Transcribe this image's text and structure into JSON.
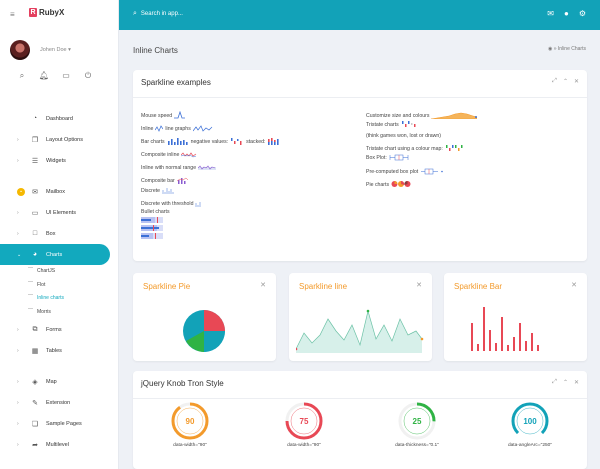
{
  "brand": {
    "name": "RubyX"
  },
  "user": {
    "name": "Johen Doe"
  },
  "sidebar": {
    "items": [
      {
        "label": "Dashboard",
        "icon": "dashboard-icon"
      },
      {
        "label": "Layout Options",
        "icon": "layout-icon"
      },
      {
        "label": "Widgets",
        "icon": "widgets-icon"
      },
      {
        "label": "Mailbox",
        "icon": "mail-icon"
      },
      {
        "label": "UI Elements",
        "icon": "laptop-icon"
      },
      {
        "label": "Box",
        "icon": "box-icon"
      },
      {
        "label": "Charts",
        "icon": "pie-icon"
      },
      {
        "label": "Forms",
        "icon": "forms-icon"
      },
      {
        "label": "Tables",
        "icon": "table-icon"
      },
      {
        "label": "Map",
        "icon": "map-icon"
      },
      {
        "label": "Extension",
        "icon": "extension-icon"
      },
      {
        "label": "Sample Pages",
        "icon": "pages-icon"
      },
      {
        "label": "Multilevel",
        "icon": "share-icon"
      }
    ],
    "chart_subs": [
      "ChartJS",
      "Flot",
      "Inline charts",
      "Morris"
    ]
  },
  "topbar": {
    "search_placeholder": "Search in app..."
  },
  "page": {
    "title": "Inline Charts",
    "crumb": "» Inline Charts"
  },
  "sparkline_card": {
    "title": "Sparkline examples",
    "left": [
      "Mouse speed",
      "Inline",
      "line graphs",
      "Bar charts",
      "negative values:",
      "stacked:",
      "Composite inline",
      "Inline with normal range",
      "Composite bar",
      "Discrete",
      "Discrete with threshold",
      "Bullet charts"
    ],
    "right": [
      "Customize size and colours",
      "Tristate charts",
      "(think games won, lost or drawn)",
      "Tristate chart using a colour map:",
      "Box Plot:",
      "Pre-computed box plot",
      "Pie charts"
    ]
  },
  "pie_card": {
    "title": "Sparkline Pie"
  },
  "line_card": {
    "title": "Sparkline line"
  },
  "bar_card": {
    "title": "Sparkline Bar"
  },
  "knob_card": {
    "title": "jQuery Knob Tron Style",
    "knobs": [
      {
        "value": "90",
        "caption": "data-width=\"90\"",
        "color": "#f39a2b"
      },
      {
        "value": "75",
        "caption": "data-width=\"90\"",
        "color": "#e84855"
      },
      {
        "value": "25",
        "caption": "data-thickness=\"0.1\"",
        "color": "#2fb344"
      },
      {
        "value": "100",
        "caption": "data-angleArc=\"250\"",
        "color": "#12a2b8"
      }
    ]
  },
  "colors": {
    "accent": "#12a2b8",
    "orange": "#f39a2b",
    "red": "#e84855",
    "green": "#2fb344"
  }
}
